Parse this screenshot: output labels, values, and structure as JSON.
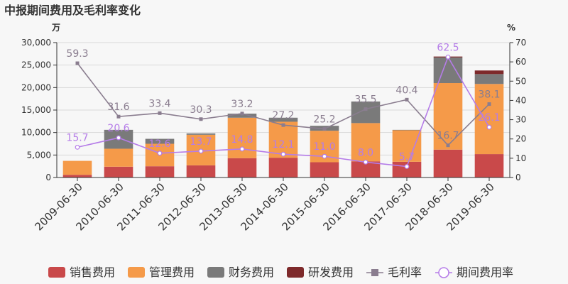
{
  "title": "中报期间费用及毛利率变化",
  "chart_data": {
    "type": "bar",
    "stacked": true,
    "left_unit": "万",
    "right_unit": "%",
    "categories": [
      "2009-06-30",
      "2010-06-30",
      "2011-06-30",
      "2012-06-30",
      "2013-06-30",
      "2014-06-30",
      "2015-06-30",
      "2016-06-30",
      "2017-06-30",
      "2018-06-30",
      "2019-06-30"
    ],
    "ylim_left": [
      0,
      30000
    ],
    "yticks_left": [
      0,
      5000,
      10000,
      15000,
      20000,
      25000,
      30000
    ],
    "ytick_labels_left": [
      "0",
      "5,000",
      "10,000",
      "15,000",
      "20,000",
      "25,000",
      "30,000"
    ],
    "ylim_right": [
      0,
      70
    ],
    "yticks_right": [
      0,
      10,
      20,
      30,
      40,
      50,
      60,
      70
    ],
    "ytick_labels_right": [
      "0",
      "10",
      "20",
      "30",
      "40",
      "50",
      "60",
      "70"
    ],
    "series": [
      {
        "name": "销售费用",
        "type": "bar",
        "axis": "left",
        "color": "#c9494a",
        "values": [
          600,
          2400,
          2500,
          2700,
          4300,
          4400,
          3400,
          3600,
          3500,
          6200,
          5200
        ]
      },
      {
        "name": "管理费用",
        "type": "bar",
        "axis": "left",
        "color": "#f59a49",
        "values": [
          3100,
          4000,
          5000,
          6800,
          9000,
          8000,
          7000,
          8500,
          7000,
          14800,
          15600
        ]
      },
      {
        "name": "财务费用",
        "type": "bar",
        "axis": "left",
        "color": "#7a7a7a",
        "values": [
          0,
          4200,
          1100,
          300,
          900,
          900,
          1100,
          4800,
          100,
          5700,
          2200
        ]
      },
      {
        "name": "研发费用",
        "type": "bar",
        "axis": "left",
        "color": "#7e2a2b",
        "values": [
          0,
          0,
          0,
          0,
          0,
          0,
          0,
          0,
          0,
          200,
          800
        ]
      },
      {
        "name": "毛利率",
        "type": "line",
        "axis": "right",
        "color": "#8a7d8f",
        "marker": "square",
        "values": [
          59.3,
          31.6,
          33.4,
          30.3,
          33.2,
          27.2,
          25.2,
          35.5,
          40.4,
          16.7,
          38.1
        ],
        "labels": [
          "59.3",
          "31.6",
          "33.4",
          "30.3",
          "33.2",
          "27.2",
          "25.2",
          "35.5",
          "40.4",
          "16.7",
          "38.1"
        ]
      },
      {
        "name": "期间费用率",
        "type": "line",
        "axis": "right",
        "color": "#b57ce8",
        "marker": "circle",
        "values": [
          15.7,
          20.6,
          12.6,
          13.7,
          14.8,
          12.1,
          11.0,
          8.0,
          5.7,
          62.5,
          26.1
        ],
        "labels": [
          "15.7",
          "20.6",
          "12.6",
          "13.7",
          "14.8",
          "12.1",
          "11.0",
          "8.0",
          "5.7",
          "62.5",
          "26.1"
        ]
      }
    ],
    "legend_position": "bottom",
    "grid": true
  }
}
